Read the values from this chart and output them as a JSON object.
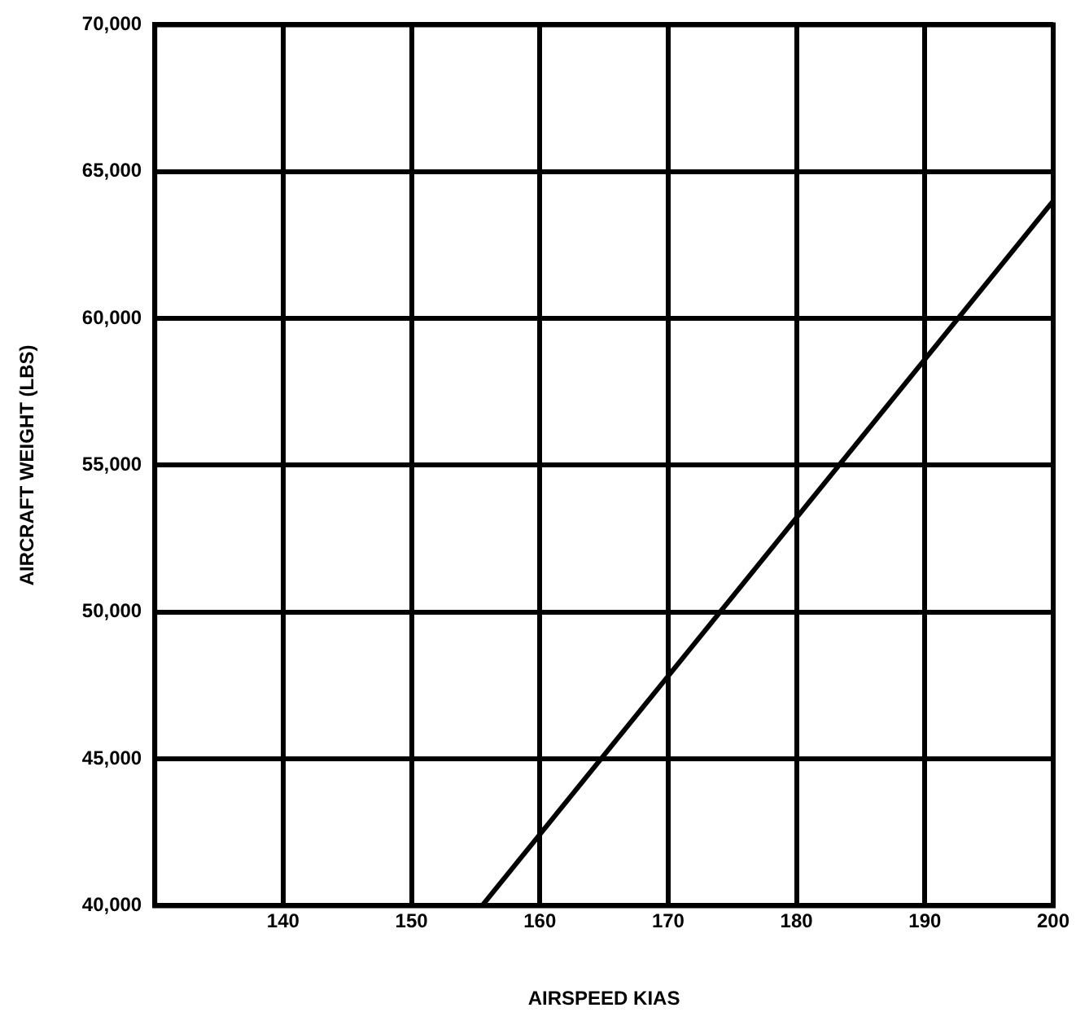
{
  "chart_data": {
    "type": "line",
    "xlabel": "AIRSPEED KIAS",
    "ylabel": "AIRCRAFT WEIGHT (LBS)",
    "x": [
      155.5,
      200
    ],
    "values": [
      40000,
      64000
    ],
    "color": "#000000",
    "xlim": [
      130,
      200
    ],
    "xticks": [
      140,
      150,
      160,
      170,
      180,
      190,
      200
    ],
    "ylim": [
      40000,
      70000
    ],
    "yticks": [
      {
        "value": 40000,
        "label": "40,000"
      },
      {
        "value": 45000,
        "label": "45,000"
      },
      {
        "value": 50000,
        "label": "50,000"
      },
      {
        "value": 55000,
        "label": "55,000"
      },
      {
        "value": 60000,
        "label": "60,000"
      },
      {
        "value": 65000,
        "label": "65,000"
      },
      {
        "value": 70000,
        "label": "70,000"
      }
    ],
    "grid": true,
    "marker": "none",
    "line_style": "solid",
    "legend": false
  }
}
